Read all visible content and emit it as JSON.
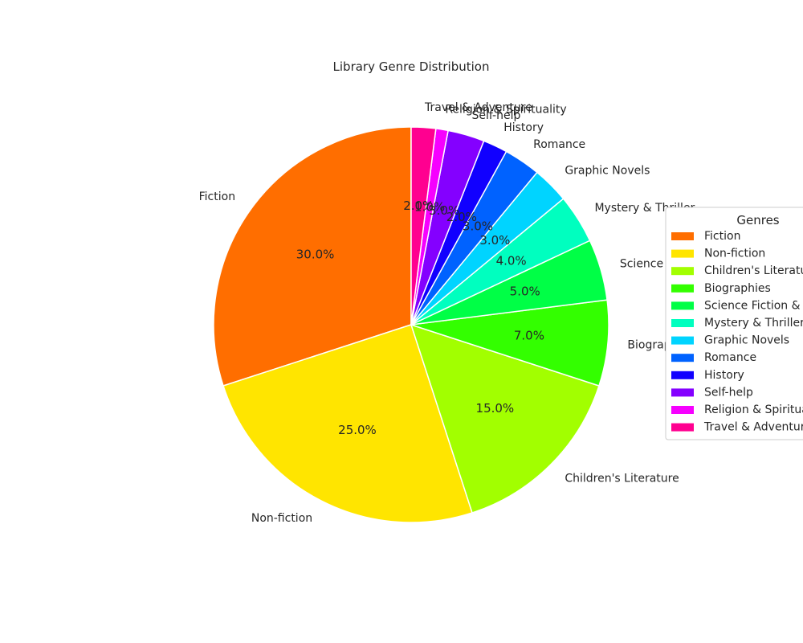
{
  "chart_data": {
    "type": "pie",
    "title": "Library Genre Distribution",
    "slices": [
      {
        "label": "Fiction",
        "value": 30.0,
        "pct_label": "30.0%",
        "color": "#ff6e00"
      },
      {
        "label": "Non-fiction",
        "value": 25.0,
        "pct_label": "25.0%",
        "color": "#ffe500"
      },
      {
        "label": "Children's Literature",
        "value": 15.0,
        "pct_label": "15.0%",
        "color": "#a2ff00"
      },
      {
        "label": "Biographies",
        "value": 7.0,
        "pct_label": "7.0%",
        "color": "#33ff00"
      },
      {
        "label": "Science Fiction & Fantasy",
        "value": 5.0,
        "pct_label": "5.0%",
        "color": "#00ff46"
      },
      {
        "label": "Mystery & Thriller",
        "value": 4.0,
        "pct_label": "4.0%",
        "color": "#00ffbf"
      },
      {
        "label": "Graphic Novels",
        "value": 3.0,
        "pct_label": "3.0%",
        "color": "#00d4ff"
      },
      {
        "label": "Romance",
        "value": 3.0,
        "pct_label": "3.0%",
        "color": "#0062ff"
      },
      {
        "label": "History",
        "value": 2.0,
        "pct_label": "2.0%",
        "color": "#1100ff"
      },
      {
        "label": "Self-help",
        "value": 3.0,
        "pct_label": "3.0%",
        "color": "#8400ff"
      },
      {
        "label": "Religion & Spirituality",
        "value": 1.0,
        "pct_label": "1.0%",
        "color": "#f600ff"
      },
      {
        "label": "Travel & Adventure",
        "value": 2.0,
        "pct_label": "2.0%",
        "color": "#ff0090"
      }
    ],
    "start_angle_deg": 90,
    "direction": "counterclockwise",
    "legend": {
      "title": "Genres",
      "placement": "center-right",
      "entries": [
        "Fiction",
        "Non-fiction",
        "Children's Literatu",
        "Biographies",
        "Science Fiction &",
        "Mystery & Thriller",
        "Graphic Novels",
        "Romance",
        "History",
        "Self-help",
        "Religion & Spiritua",
        "Travel & Adventure"
      ]
    }
  }
}
